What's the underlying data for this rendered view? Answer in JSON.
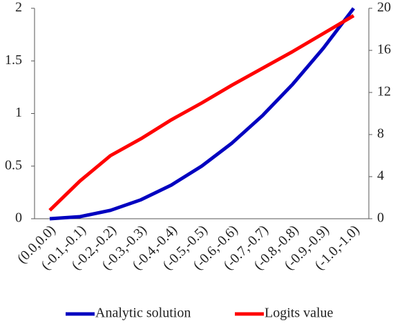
{
  "chart_data": {
    "type": "line",
    "categories": [
      "(0.0,0.0)",
      "(-0.1,-0.1)",
      "(-0.2,-0.2)",
      "(-0.3,-0.3)",
      "(-0.4,-0.4)",
      "(-0.5,-0.5)",
      "(-0.6,-0.6)",
      "(-0.7,-0.7)",
      "(-0.8,-0.8)",
      "(-0.9,-0.9)",
      "(-1.0,-1.0)"
    ],
    "series": [
      {
        "name": "Analytic solution",
        "color": "#0000c0",
        "values": [
          0,
          0.02,
          0.08,
          0.18,
          0.32,
          0.5,
          0.72,
          0.98,
          1.28,
          1.62,
          2.0
        ]
      },
      {
        "name": "Logits value",
        "color": "#ff0000",
        "axis": "y2",
        "values": [
          0.8,
          3.6,
          6.0,
          7.6,
          9.4,
          11.0,
          12.7,
          14.3,
          15.9,
          17.6,
          19.3
        ]
      }
    ],
    "ylim": [
      0,
      2
    ],
    "yticks": [
      0,
      0.5,
      1,
      1.5,
      2
    ],
    "y2lim": [
      0,
      20
    ],
    "y2ticks": [
      0,
      4,
      8,
      12,
      16,
      20
    ],
    "grid": false
  }
}
